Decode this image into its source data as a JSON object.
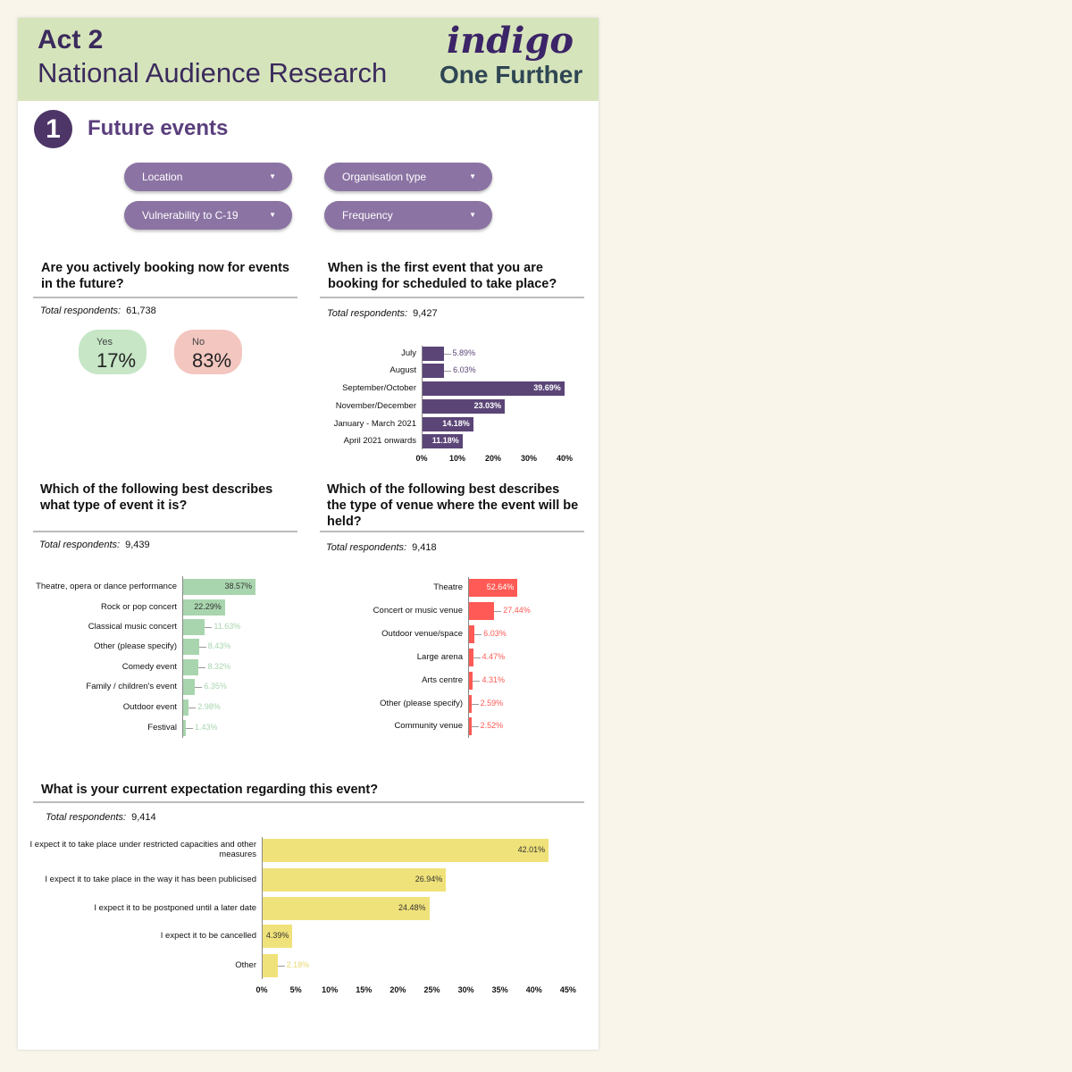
{
  "header": {
    "act": "Act 2",
    "title": "National Audience Research",
    "logo_top": "indigo",
    "logo_bottom": "One Further"
  },
  "section": {
    "number": "1",
    "title": "Future events"
  },
  "filters": [
    {
      "label": "Location"
    },
    {
      "label": "Organisation type"
    },
    {
      "label": "Vulnerability to C-19"
    },
    {
      "label": "Frequency"
    }
  ],
  "q1": {
    "question": "Are you actively booking now for events in the future?",
    "respondents_label": "Total respondents:",
    "respondents": "61,738",
    "yes_label": "Yes",
    "yes_value": "17%",
    "no_label": "No",
    "no_value": "83%"
  },
  "colors": {
    "purple": "#5b4577",
    "green": "#a8d5ae",
    "red": "#ff5a55",
    "yellow": "#f0e27a"
  },
  "chart_data": [
    {
      "id": "timing",
      "type": "bar",
      "title": "When is the first event that you are booking for scheduled to take place?",
      "respondents_label": "Total respondents:",
      "respondents": "9,427",
      "categories": [
        "July",
        "August",
        "September/October",
        "November/December",
        "January - March 2021",
        "April 2021 onwards"
      ],
      "values": [
        5.89,
        6.03,
        39.69,
        23.03,
        14.18,
        11.18
      ],
      "value_labels": [
        "5.89%",
        "6.03%",
        "39.69%",
        "23.03%",
        "14.18%",
        "11.18%"
      ],
      "xlim": [
        0,
        40
      ],
      "ticks": [
        "0%",
        "10%",
        "20%",
        "30%",
        "40%"
      ]
    },
    {
      "id": "type",
      "type": "bar",
      "title": "Which of the following best describes what type of event it is?",
      "respondents_label": "Total respondents:",
      "respondents": "9,439",
      "categories": [
        "Theatre, opera or dance performance",
        "Rock or pop concert",
        "Classical music concert",
        "Other (please specify)",
        "Comedy event",
        "Family / children's event",
        "Outdoor event",
        "Festival"
      ],
      "values": [
        38.57,
        22.29,
        11.63,
        8.43,
        8.32,
        6.35,
        2.98,
        1.43
      ],
      "value_labels": [
        "38.57%",
        "22.29%",
        "11.63%",
        "8.43%",
        "8.32%",
        "6.35%",
        "2.98%",
        "1.43%"
      ]
    },
    {
      "id": "venue",
      "type": "bar",
      "title": "Which of the following best describes the type of venue where the event will be held?",
      "respondents_label": "Total respondents:",
      "respondents": "9,418",
      "categories": [
        "Theatre",
        "Concert or music venue",
        "Outdoor venue/space",
        "Large arena",
        "Arts centre",
        "Other (please specify)",
        "Community venue"
      ],
      "values": [
        52.64,
        27.44,
        6.03,
        4.47,
        4.31,
        2.59,
        2.52
      ],
      "value_labels": [
        "52.64%",
        "27.44%",
        "6.03%",
        "4.47%",
        "4.31%",
        "2.59%",
        "2.52%"
      ]
    },
    {
      "id": "expect",
      "type": "bar",
      "title": "What is your current expectation regarding this event?",
      "respondents_label": "Total respondents:",
      "respondents": "9,414",
      "categories": [
        "I expect it to take place under restricted capacities and other measures",
        "I expect it to take place in the way it has been publicised",
        "I expect it to be postponed until a later date",
        "I expect it to be cancelled",
        "Other"
      ],
      "values": [
        42.01,
        26.94,
        24.48,
        4.39,
        2.18
      ],
      "value_labels": [
        "42.01%",
        "26.94%",
        "24.48%",
        "4.39%",
        "2.18%"
      ],
      "xlim": [
        0,
        45
      ],
      "ticks": [
        "0%",
        "5%",
        "10%",
        "15%",
        "20%",
        "25%",
        "30%",
        "35%",
        "40%",
        "45%"
      ]
    }
  ]
}
